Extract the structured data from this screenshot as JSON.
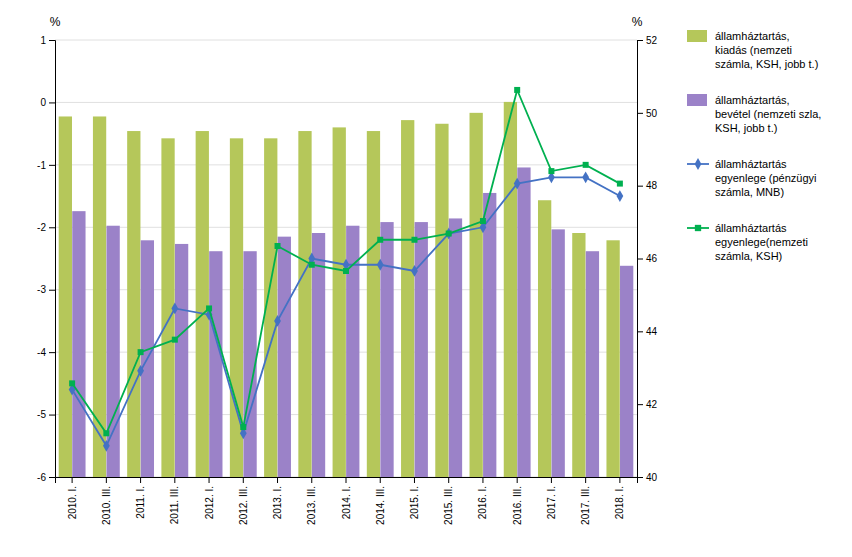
{
  "chart_data": {
    "type": "bar",
    "categories": [
      "2010. I.",
      "2010. III.",
      "2011. I.",
      "2011. III.",
      "2012. I.",
      "2012. III.",
      "2013. I.",
      "2013. III.",
      "2014. I.",
      "2014. III.",
      "2015. I.",
      "2015. III.",
      "2016. I.",
      "2016. III.",
      "2017. I.",
      "2017. III.",
      "2018. I."
    ],
    "series": [
      {
        "name": "államháztartás,\nkiadás (nemzeti\nszámla, KSH, jobb t.)",
        "type": "bar",
        "axis": "y2",
        "color": "#b5c75a",
        "values": [
          49.9,
          49.9,
          49.5,
          49.3,
          49.5,
          49.3,
          49.3,
          49.5,
          49.6,
          49.5,
          49.8,
          49.7,
          50.0,
          50.3,
          47.6,
          46.7,
          46.5
        ]
      },
      {
        "name": "államháztartás,\nbevétel (nemzeti szla,\nKSH, jobb t.)",
        "type": "bar",
        "axis": "y2",
        "color": "#9b82c8",
        "values": [
          47.3,
          46.9,
          46.5,
          46.4,
          46.2,
          46.2,
          46.6,
          46.7,
          46.9,
          47.0,
          47.0,
          47.1,
          47.8,
          48.5,
          46.8,
          46.2,
          45.8
        ]
      },
      {
        "name": "államháztartás\negyenlege (pénzügyi\nszámla, MNB)",
        "type": "line",
        "color": "#4472c4",
        "marker": "diamond",
        "values": [
          -4.6,
          -5.5,
          -4.3,
          -3.3,
          -3.4,
          -5.3,
          -3.5,
          -2.5,
          -2.6,
          -2.6,
          -2.7,
          -2.1,
          -2.0,
          -1.3,
          -1.2,
          -1.2,
          -1.5
        ]
      },
      {
        "name": "államháztartás\negyenlege(nemzeti\nszámla, KSH)",
        "type": "line",
        "color": "#00b050",
        "marker": "square",
        "values": [
          -4.5,
          -5.3,
          -4.0,
          -3.8,
          -3.3,
          -5.2,
          -2.3,
          -2.6,
          -2.7,
          -2.2,
          -2.2,
          -2.1,
          -1.9,
          0.2,
          -1.1,
          -1.0,
          -1.3
        ]
      }
    ],
    "ylim": [
      -6,
      1
    ],
    "yticks": [
      -6,
      -5,
      -4,
      -3,
      -2,
      -1,
      0,
      1
    ],
    "y2lim": [
      40,
      52
    ],
    "y2ticks": [
      40,
      42,
      44,
      46,
      48,
      50,
      52
    ],
    "ylabel": "%",
    "y2label": "%",
    "grid": true,
    "legend": "right"
  }
}
